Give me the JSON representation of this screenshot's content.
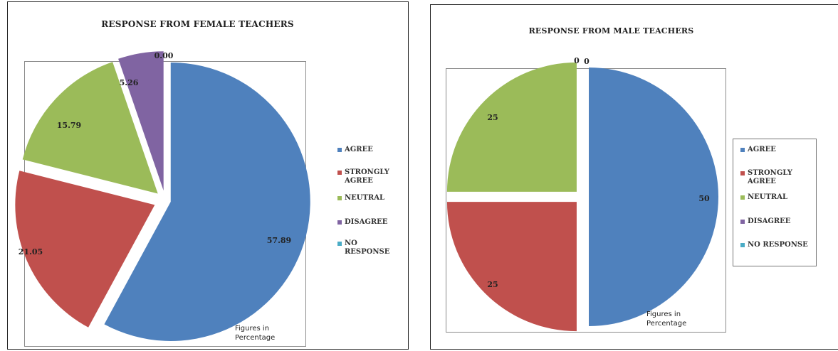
{
  "chart_data": [
    {
      "type": "pie",
      "title": "RESPONSE FROM FEMALE TEACHERS",
      "categories": [
        "AGREE",
        "STRONGLY AGREE",
        "NEUTRAL",
        "DISAGREE",
        "NO RESPONSE"
      ],
      "values": [
        57.89,
        21.05,
        15.79,
        5.26,
        0.0
      ],
      "data_labels": [
        "57.89",
        "21.05",
        "15.79",
        "5.26",
        "0.00"
      ],
      "colors": [
        "#4f81bd",
        "#c0504d",
        "#9bbb59",
        "#8064a2",
        "#4bacc6"
      ],
      "exploded": true,
      "legend_position": "right",
      "note": "Figures in Percentage"
    },
    {
      "type": "pie",
      "title": "RESPONSE FROM MALE TEACHERS",
      "categories": [
        "AGREE",
        "STRONGLY AGREE",
        "NEUTRAL",
        "DISAGREE",
        "NO RESPONSE"
      ],
      "values": [
        50,
        25,
        25,
        0,
        0
      ],
      "data_labels": [
        "50",
        "25",
        "25",
        "0",
        "0"
      ],
      "colors": [
        "#4f81bd",
        "#c0504d",
        "#9bbb59",
        "#8064a2",
        "#4bacc6"
      ],
      "exploded": true,
      "legend_position": "right",
      "note": "Figures in Percentage"
    }
  ],
  "legend_labels": {
    "female": [
      "AGREE",
      "STRONGLY\nAGREE",
      "NEUTRAL",
      "DISAGREE",
      "NO\nRESPONSE"
    ],
    "male": [
      "AGREE",
      "STRONGLY\nAGREE",
      "NEUTRAL",
      "DISAGREE",
      "NO RESPONSE"
    ]
  },
  "notes": {
    "female": [
      "Figures in",
      "Percentage"
    ],
    "male": [
      "Figures in",
      "Percentage"
    ]
  }
}
